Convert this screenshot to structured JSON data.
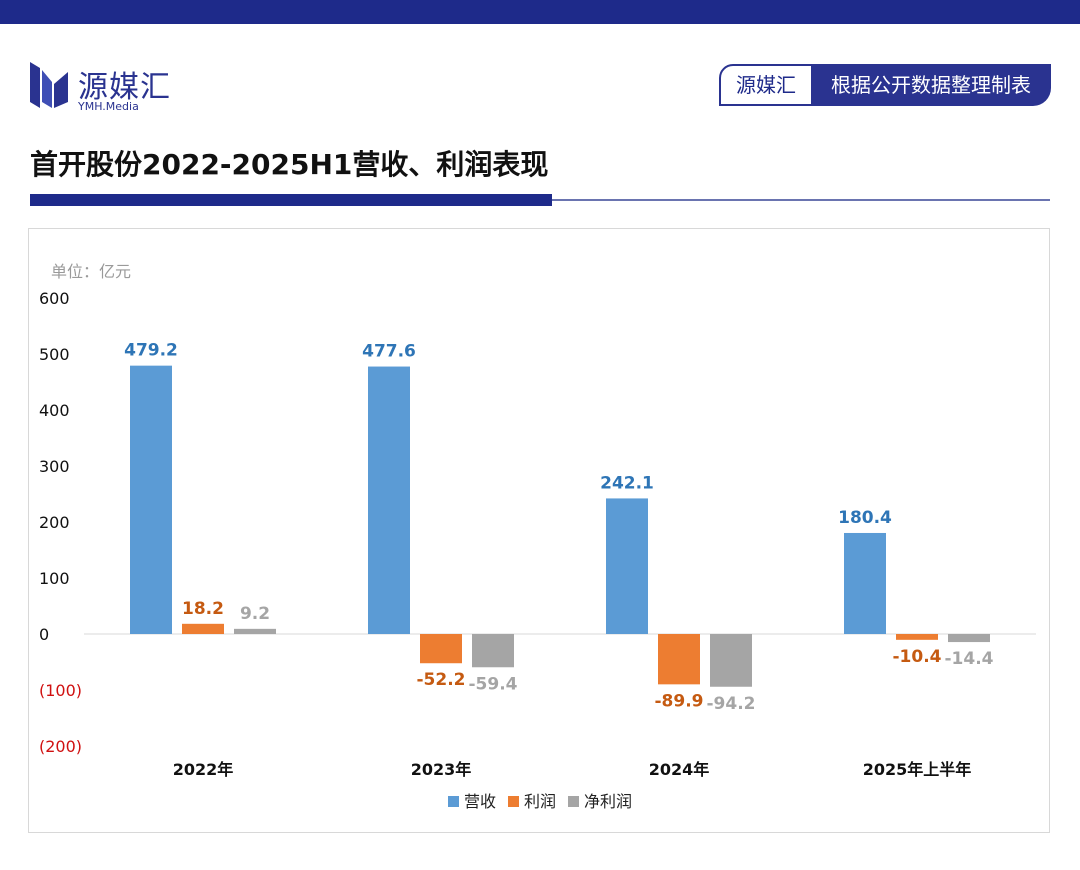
{
  "header": {
    "brand": "源媒汇",
    "brand_sub": "YMH.Media",
    "source_left": "源媒汇",
    "source_right": "根据公开数据整理制表",
    "title": "首开股份2022-2025H1营收、利润表现"
  },
  "colors": {
    "brand_navy": "#1e2a8a",
    "series_revenue": "#5b9bd5",
    "series_profit": "#ed7d31",
    "series_net_profit": "#a5a5a5",
    "label_revenue": "#2e75b6",
    "label_profit": "#c55a11",
    "label_net_profit": "#a5a5a5",
    "negative_tick": "#d01010"
  },
  "chart_data": {
    "type": "bar",
    "unit": "单位：亿元",
    "categories": [
      "2022年",
      "2023年",
      "2024年",
      "2025年上半年"
    ],
    "series": [
      {
        "name": "营收",
        "values": [
          479.2,
          477.6,
          242.1,
          180.4
        ],
        "labels": [
          "479.2",
          "477.6",
          "242.1",
          "180.4"
        ]
      },
      {
        "name": "利润",
        "values": [
          18.2,
          -52.2,
          -89.9,
          -10.4
        ],
        "labels": [
          "18.2",
          "-52.2",
          "-89.9",
          "-10.4"
        ]
      },
      {
        "name": "净利润",
        "values": [
          9.2,
          -59.4,
          -94.2,
          -14.4
        ],
        "labels": [
          "9.2",
          "-59.4",
          "-94.2",
          "-14.4"
        ]
      }
    ],
    "ylim": [
      -200,
      600
    ],
    "yticks": [
      600,
      500,
      400,
      300,
      200,
      100,
      0,
      -100,
      -200
    ],
    "ytick_labels": [
      "600",
      "500",
      "400",
      "300",
      "200",
      "100",
      "0",
      "(100)",
      "(200)"
    ],
    "legend_position": "bottom"
  }
}
